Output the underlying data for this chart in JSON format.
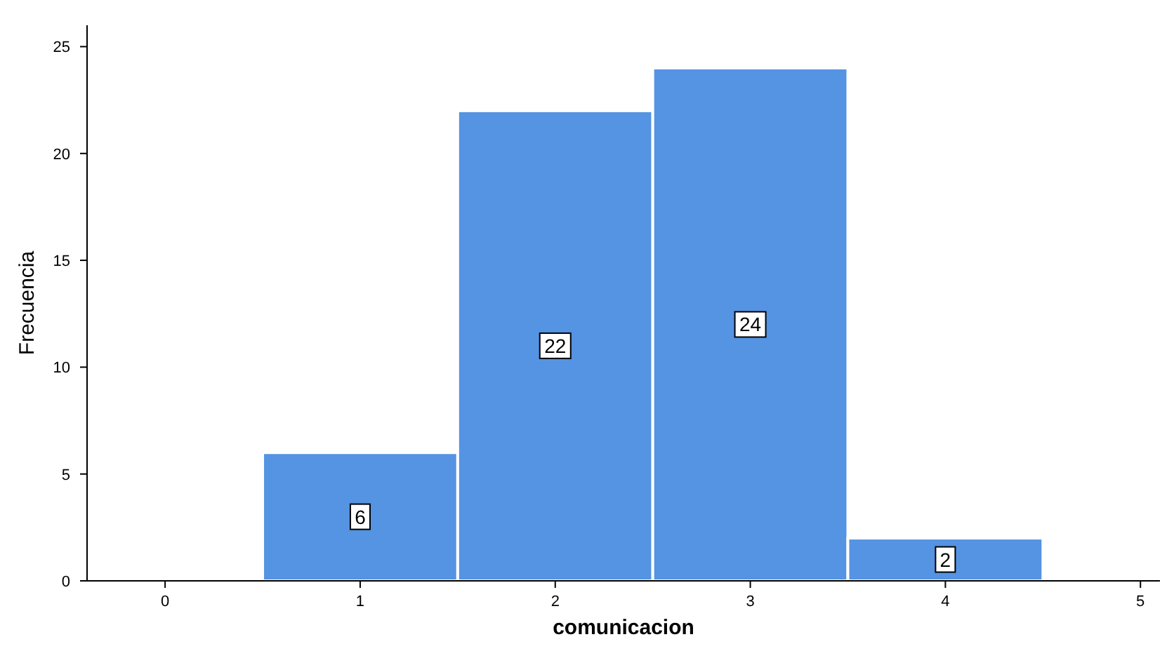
{
  "chart_data": {
    "type": "histogram",
    "xlabel": "comunicacion",
    "ylabel": "Frecuencia",
    "bins": [
      0.5,
      1.5,
      2.5,
      3.5,
      4.5
    ],
    "values": [
      6,
      22,
      24,
      2
    ],
    "color": "#5593e3",
    "xlim": [
      -0.4,
      5.1
    ],
    "xticks": [
      0,
      1,
      2,
      3,
      4,
      5
    ],
    "ylim": [
      0,
      26
    ],
    "yticks": [
      0,
      5,
      10,
      15,
      20,
      25
    ],
    "data_labels": true,
    "grid": false
  }
}
